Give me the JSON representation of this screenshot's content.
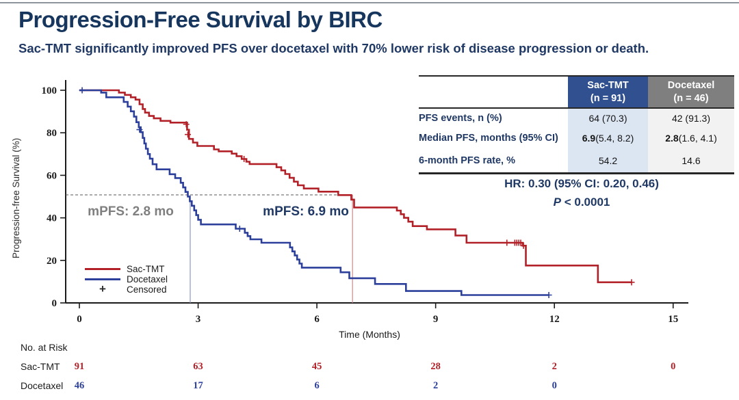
{
  "slide": {
    "title": "Progression-Free Survival by BIRC",
    "subtitle": "Sac-TMT significantly improved PFS over docetaxel with 70% lower risk of disease progression or death."
  },
  "colors": {
    "navy_text": "#1F3864",
    "title_navy": "#17365D",
    "sac_red": "#B22028",
    "doc_blue": "#2B3F9B",
    "gray_annotation": "#7F7F7F",
    "header_blue_bg": "#305090",
    "header_gray_bg": "#7F7F7F",
    "sac_column_bg": "#DCE5F2",
    "doc_column_bg": "#F2F2F2"
  },
  "stats_table": {
    "columns": [
      {
        "name": "Sac-TMT",
        "n": "(n = 91)"
      },
      {
        "name": "Docetaxel",
        "n": "(n = 46)"
      }
    ],
    "rows": [
      {
        "label": "PFS events, n (%)",
        "cells": [
          {
            "bold": "",
            "rest": "64 (70.3)"
          },
          {
            "bold": "",
            "rest": "42 (91.3)"
          }
        ]
      },
      {
        "label": "Median PFS, months (95% CI)",
        "cells": [
          {
            "bold": "6.9",
            "rest": " (5.4, 8.2)"
          },
          {
            "bold": "2.8",
            "rest": " (1.6, 4.1)"
          }
        ]
      },
      {
        "label": "6-month PFS rate, %",
        "cells": [
          {
            "bold": "",
            "rest": "54.2"
          },
          {
            "bold": "",
            "rest": "14.6"
          }
        ]
      }
    ]
  },
  "hr_block": {
    "line1": "HR: 0.30 (95% CI: 0.20, 0.46)",
    "p_italic": "P",
    "p_rest": " < 0.0001"
  },
  "chart_data": {
    "type": "line",
    "subtype": "kaplan-meier-step",
    "xlabel": "Time (Months)",
    "ylabel": "Progression-free Survival (%)",
    "xlim": [
      0,
      15.4
    ],
    "ylim": [
      0,
      100
    ],
    "xticks": [
      0,
      3,
      6,
      9,
      12,
      15
    ],
    "yticks": [
      0,
      20,
      40,
      60,
      80,
      100
    ],
    "grid": false,
    "legend_position": "lower-left-inside",
    "legend": [
      {
        "label": "Sac-TMT",
        "type": "line",
        "color": "#B22028"
      },
      {
        "label": "Docetaxel",
        "type": "line",
        "color": "#2B3F9B"
      },
      {
        "label": "Censored",
        "type": "marker",
        "symbol": "+",
        "color": "#2b2b2b"
      }
    ],
    "series": [
      {
        "name": "Sac-TMT",
        "color": "#B22028",
        "start": [
          0,
          100
        ],
        "end_time": 13.95,
        "steps": [
          [
            1.0,
            98.9
          ],
          [
            1.15,
            97.8
          ],
          [
            1.3,
            96.7
          ],
          [
            1.42,
            95.6
          ],
          [
            1.52,
            93.4
          ],
          [
            1.6,
            91.2
          ],
          [
            1.66,
            89.5
          ],
          [
            1.76,
            87.9
          ],
          [
            1.88,
            86.8
          ],
          [
            2.05,
            85.6
          ],
          [
            2.3,
            84.8
          ],
          [
            2.72,
            81.4
          ],
          [
            2.77,
            77.1
          ],
          [
            2.87,
            75.4
          ],
          [
            2.98,
            73.8
          ],
          [
            3.4,
            72.2
          ],
          [
            3.52,
            71.3
          ],
          [
            3.85,
            70.2
          ],
          [
            3.97,
            69.0
          ],
          [
            4.1,
            67.7
          ],
          [
            4.22,
            66.4
          ],
          [
            4.3,
            65.3
          ],
          [
            4.98,
            63.8
          ],
          [
            5.1,
            62.3
          ],
          [
            5.2,
            60.6
          ],
          [
            5.31,
            58.8
          ],
          [
            5.42,
            57.0
          ],
          [
            5.52,
            55.3
          ],
          [
            5.67,
            53.8
          ],
          [
            6.04,
            52.3
          ],
          [
            6.54,
            50.7
          ],
          [
            6.87,
            48.6
          ],
          [
            6.94,
            44.9
          ],
          [
            8.02,
            43.4
          ],
          [
            8.12,
            41.7
          ],
          [
            8.2,
            40.0
          ],
          [
            8.31,
            38.2
          ],
          [
            8.42,
            36.1
          ],
          [
            8.78,
            34.6
          ],
          [
            9.5,
            31.7
          ],
          [
            9.78,
            28.3
          ],
          [
            11.2,
            26.9
          ],
          [
            11.28,
            17.6
          ],
          [
            13.1,
            9.7
          ]
        ],
        "censors": [
          [
            2.7,
            84.0
          ],
          [
            2.74,
            79.2
          ],
          [
            4.16,
            67.7
          ],
          [
            10.8,
            28.3
          ],
          [
            11.0,
            28.3
          ],
          [
            11.05,
            28.3
          ],
          [
            11.1,
            28.3
          ],
          [
            11.15,
            28.3
          ],
          [
            11.22,
            26.9
          ],
          [
            13.95,
            9.7
          ]
        ]
      },
      {
        "name": "Docetaxel",
        "color": "#2B3F9B",
        "start": [
          0,
          100
        ],
        "end_time": 11.86,
        "steps": [
          [
            0.55,
            98.9
          ],
          [
            0.68,
            96.7
          ],
          [
            1.12,
            94.5
          ],
          [
            1.22,
            92.3
          ],
          [
            1.3,
            90.1
          ],
          [
            1.38,
            87.6
          ],
          [
            1.44,
            85.0
          ],
          [
            1.5,
            82.6
          ],
          [
            1.55,
            80.3
          ],
          [
            1.6,
            77.6
          ],
          [
            1.64,
            75.0
          ],
          [
            1.68,
            72.5
          ],
          [
            1.73,
            70.0
          ],
          [
            1.78,
            67.8
          ],
          [
            1.85,
            65.2
          ],
          [
            1.95,
            62.8
          ],
          [
            2.28,
            60.5
          ],
          [
            2.42,
            58.7
          ],
          [
            2.56,
            56.5
          ],
          [
            2.62,
            54.3
          ],
          [
            2.68,
            52.2
          ],
          [
            2.74,
            50.0
          ],
          [
            2.79,
            47.8
          ],
          [
            2.84,
            45.7
          ],
          [
            2.9,
            43.5
          ],
          [
            2.95,
            41.3
          ],
          [
            3.0,
            39.1
          ],
          [
            3.07,
            36.9
          ],
          [
            3.95,
            34.9
          ],
          [
            4.18,
            33.0
          ],
          [
            4.25,
            31.4
          ],
          [
            4.32,
            29.9
          ],
          [
            4.6,
            28.3
          ],
          [
            5.32,
            26.1
          ],
          [
            5.38,
            24.2
          ],
          [
            5.44,
            22.3
          ],
          [
            5.5,
            20.4
          ],
          [
            5.56,
            18.5
          ],
          [
            5.62,
            16.6
          ],
          [
            6.6,
            14.4
          ],
          [
            6.82,
            11.6
          ],
          [
            7.47,
            8.9
          ],
          [
            8.25,
            5.6
          ],
          [
            9.65,
            3.7
          ]
        ],
        "censors": [
          [
            0.07,
            100
          ],
          [
            1.52,
            81.5
          ],
          [
            4.05,
            34.9
          ],
          [
            11.86,
            3.7
          ]
        ]
      }
    ],
    "annotations": {
      "reference_line": {
        "y": 50,
        "style": "dashed",
        "x_start": 0,
        "x_end": 6.9
      },
      "medians": [
        {
          "label": "mPFS: 2.8 mo",
          "x": 2.8,
          "series": "Docetaxel",
          "line_color": "#8A97C4",
          "text_color": "#7F7F7F"
        },
        {
          "label": "mPFS: 6.9 mo",
          "x": 6.9,
          "series": "Sac-TMT",
          "line_color": "#C98B8B",
          "text_color": "#1F3864"
        }
      ]
    },
    "no_at_risk": {
      "title": "No. at Risk",
      "times": [
        0,
        3,
        6,
        9,
        12,
        15
      ],
      "rows": [
        {
          "label": "Sac-TMT",
          "color": "#B22028",
          "counts": [
            "91",
            "63",
            "45",
            "28",
            "2",
            "0"
          ]
        },
        {
          "label": "Docetaxel",
          "color": "#2B3F9B",
          "counts": [
            "46",
            "17",
            "6",
            "2",
            "0"
          ]
        }
      ]
    }
  }
}
